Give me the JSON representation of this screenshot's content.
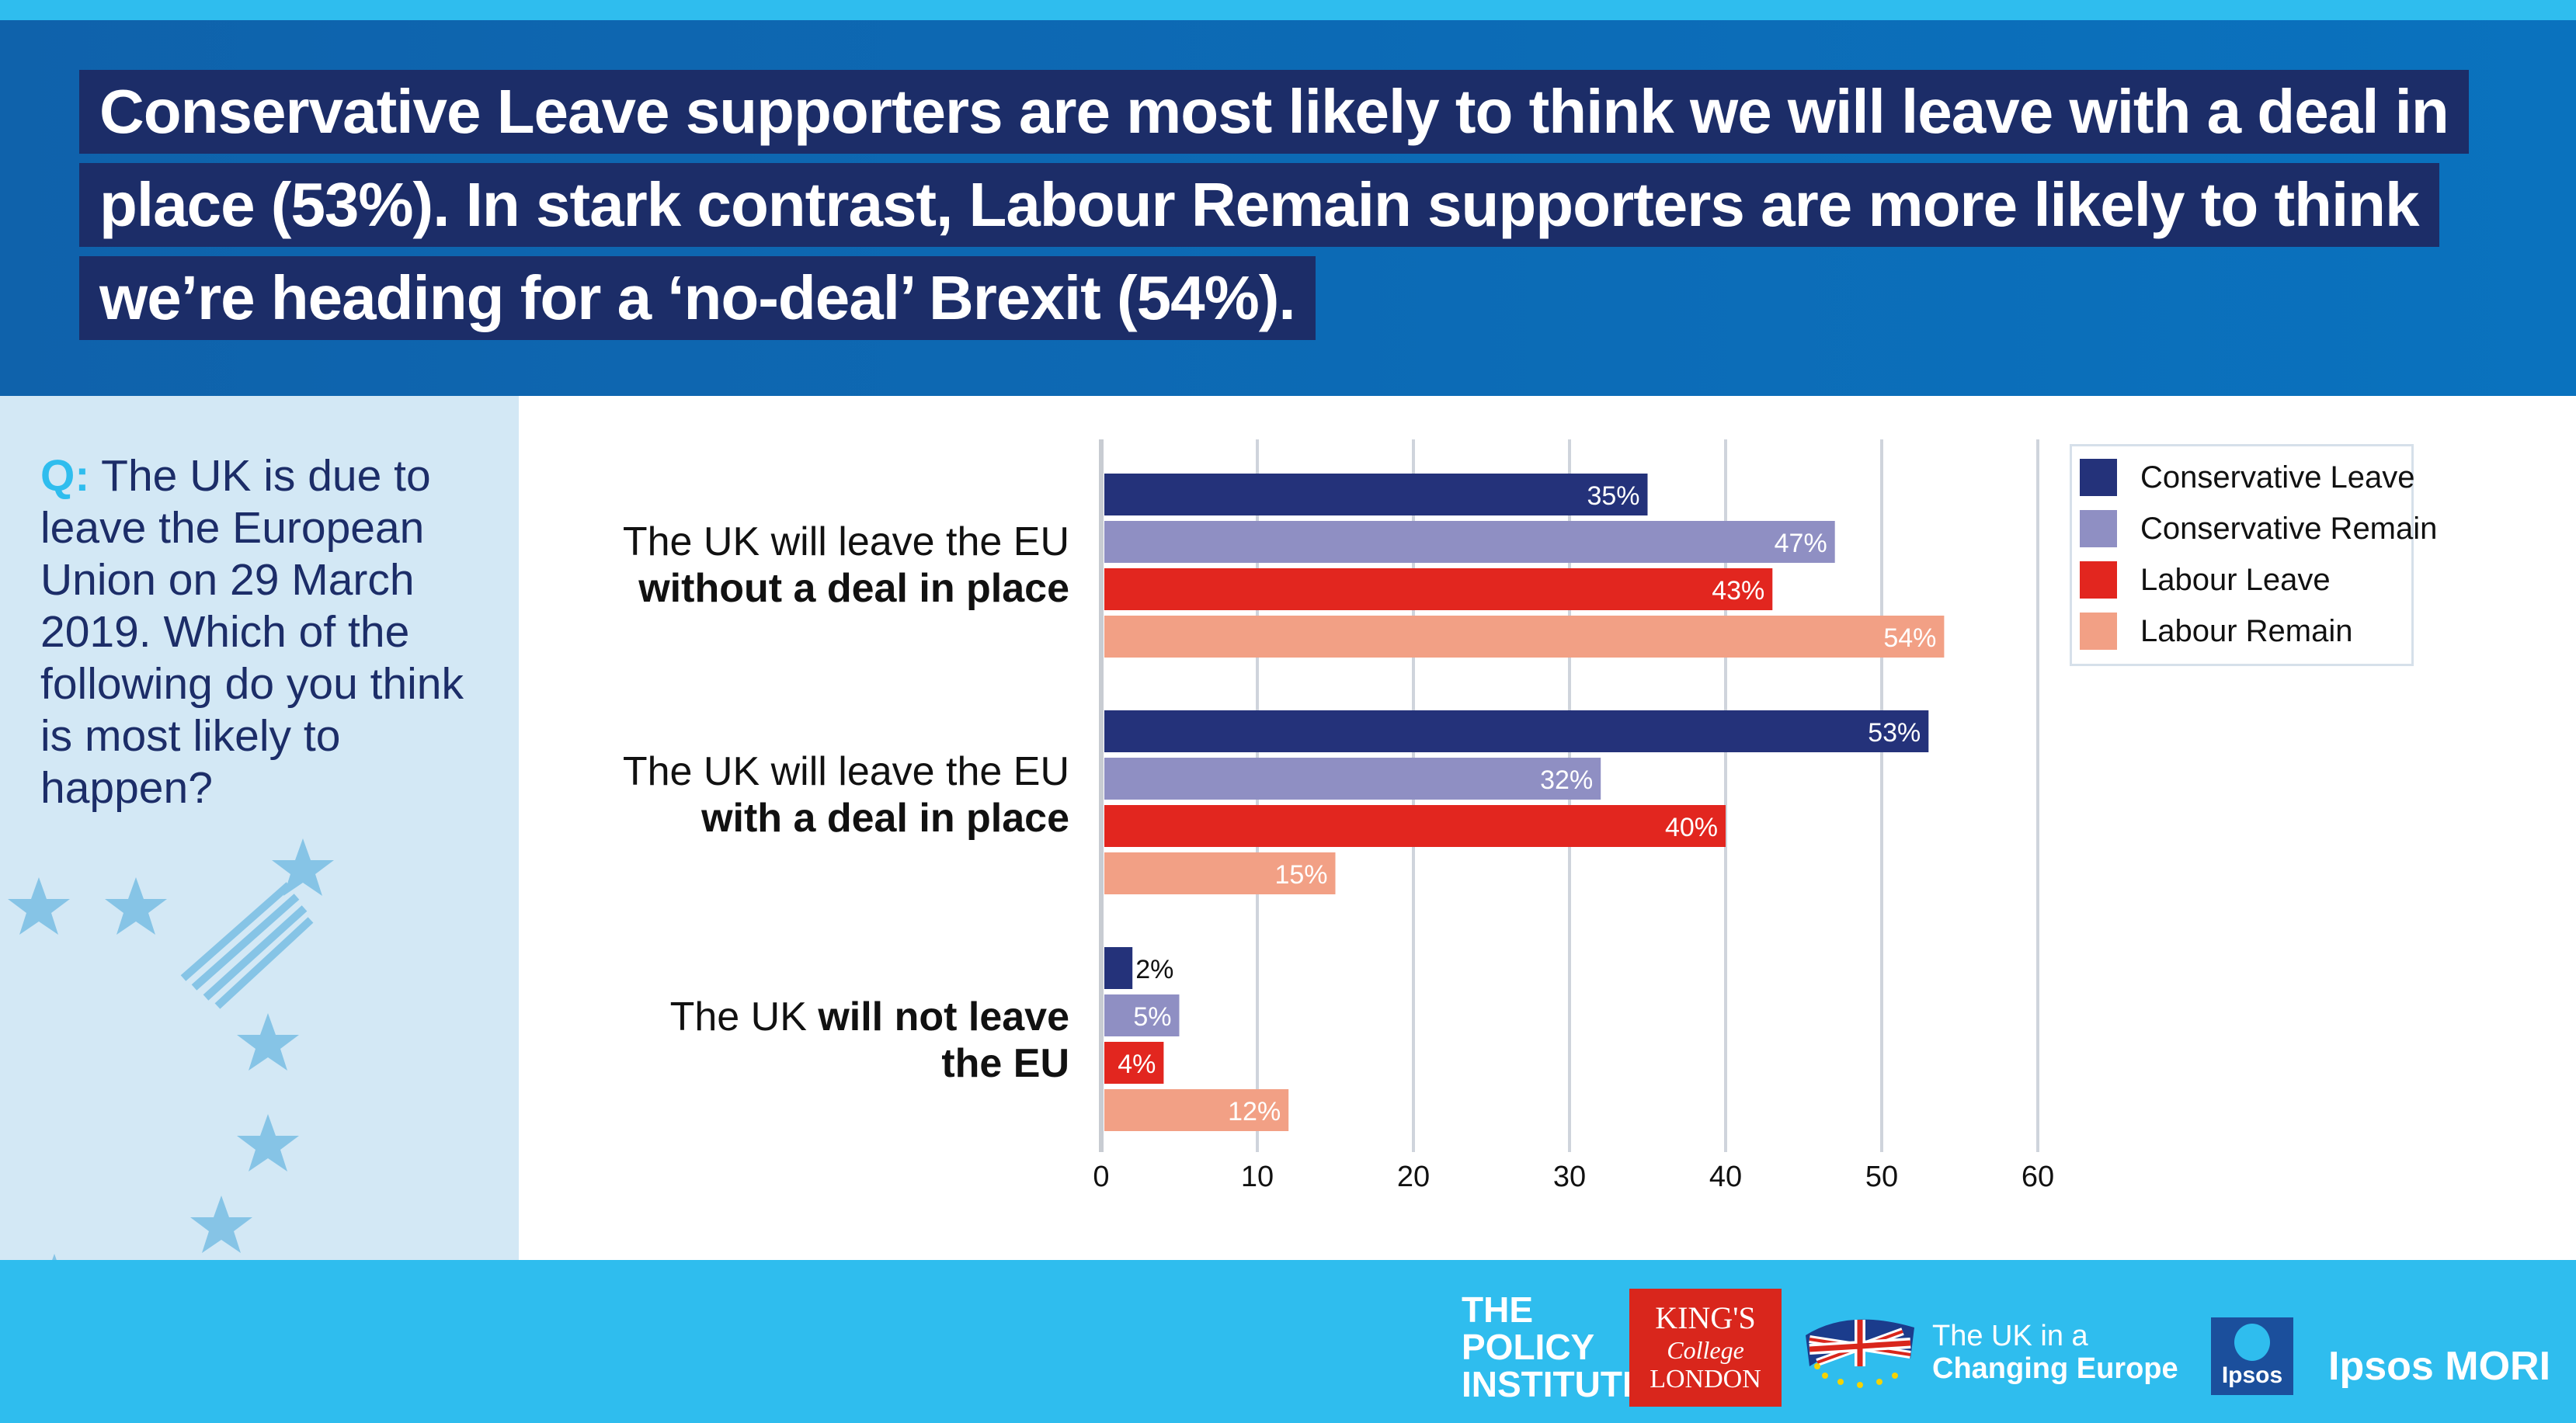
{
  "title_lines": [
    "Conservative Leave supporters are most likely to think we will leave with a deal in",
    "place (53%). In stark contrast, Labour Remain supporters are more likely to think",
    "we’re heading for a ‘no-deal’ Brexit (54%)."
  ],
  "question": {
    "prefix": "Q:",
    "text": "The UK is due to leave the European Union on 29 March 2019. Which of the following do you think is most likely to happen?"
  },
  "categories": [
    {
      "line1": "The UK will leave the EU",
      "line2_bold": "without a deal in place"
    },
    {
      "line1": "The UK will leave the EU",
      "line2_bold": "with a deal in place"
    },
    {
      "line1_plain": "The UK ",
      "line1_bold": "will not leave",
      "line2_bold": "the EU"
    }
  ],
  "logos": {
    "policy_institute": [
      "THE",
      "POLICY",
      "INSTITUTE"
    ],
    "kings": [
      "KING'S",
      "College",
      "LONDON"
    ],
    "ukce": [
      "The UK in a",
      "Changing Europe"
    ],
    "ipsos": "Ipsos",
    "ipsos_mori": "Ipsos MORI"
  },
  "chart_data": {
    "type": "bar",
    "orientation": "horizontal",
    "categories": [
      "The UK will leave the EU without a deal in place",
      "The UK will leave the EU with a deal in place",
      "The UK will not leave the EU"
    ],
    "series": [
      {
        "name": "Conservative Leave",
        "color": "#24327a",
        "values": [
          35,
          53,
          2
        ],
        "labels": [
          "35%",
          "53%",
          "2%"
        ]
      },
      {
        "name": "Conservative Remain",
        "color": "#8f8fc3",
        "values": [
          47,
          32,
          5
        ],
        "labels": [
          "47%",
          "32%",
          "5%"
        ]
      },
      {
        "name": "Labour Leave",
        "color": "#e2261f",
        "values": [
          43,
          40,
          4
        ],
        "labels": [
          "43%",
          "40%",
          "4%"
        ]
      },
      {
        "name": "Labour Remain",
        "color": "#f2a085",
        "values": [
          54,
          15,
          12
        ],
        "labels": [
          "54%",
          "15%",
          "12%"
        ]
      }
    ],
    "xlim": [
      0,
      60
    ],
    "xticks": [
      "0",
      "10",
      "20",
      "30",
      "40",
      "50",
      "60"
    ],
    "grid": true,
    "legend": "top-right"
  }
}
